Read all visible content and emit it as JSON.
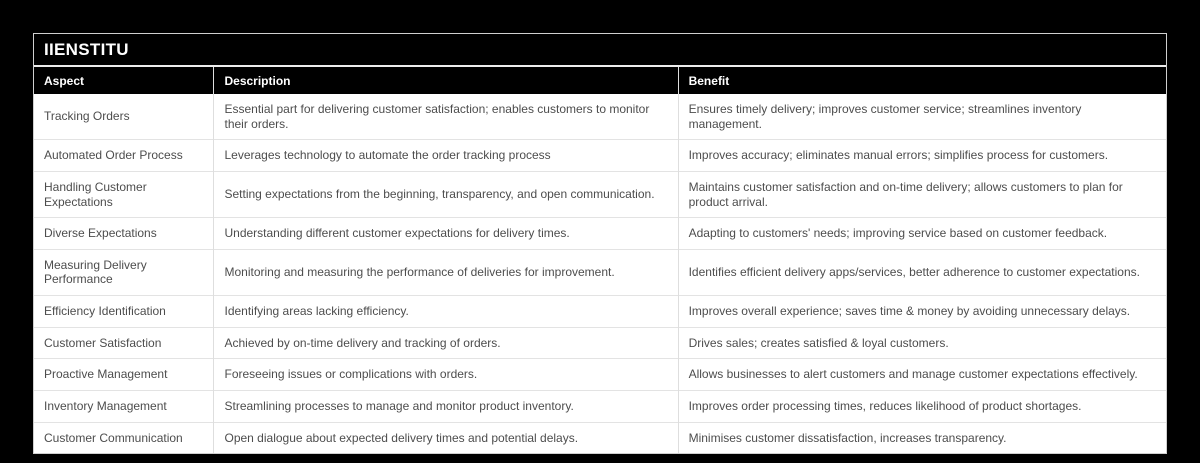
{
  "page": {
    "background_color": "#000000"
  },
  "card": {
    "title": "IIENSTITU",
    "colors": {
      "brand_bar_bg": "#000000",
      "brand_bar_text": "#ffffff",
      "header_row_bg": "#000000",
      "header_row_text": "#ffffff",
      "body_bg": "#ffffff",
      "body_text": "#4d4d4d",
      "row_divider": "#e3e3e3",
      "card_border": "#cfcfcf"
    }
  },
  "table": {
    "columns": [
      {
        "key": "aspect",
        "label": "Aspect"
      },
      {
        "key": "description",
        "label": "Description"
      },
      {
        "key": "benefit",
        "label": "Benefit"
      }
    ],
    "rows": [
      {
        "aspect": "Tracking Orders",
        "description": "Essential part for delivering customer satisfaction; enables customers to monitor their orders.",
        "benefit": "Ensures timely delivery; improves customer service; streamlines inventory management."
      },
      {
        "aspect": "Automated Order Process",
        "description": "Leverages technology to automate the order tracking process",
        "benefit": "Improves accuracy; eliminates manual errors; simplifies process for customers."
      },
      {
        "aspect": "Handling Customer Expectations",
        "description": "Setting expectations from the beginning, transparency, and open communication.",
        "benefit": "Maintains customer satisfaction and on-time delivery; allows customers to plan for product arrival."
      },
      {
        "aspect": "Diverse Expectations",
        "description": "Understanding different customer expectations for delivery times.",
        "benefit": "Adapting to customers' needs; improving service based on customer feedback."
      },
      {
        "aspect": "Measuring Delivery Performance",
        "description": "Monitoring and measuring the performance of deliveries for improvement.",
        "benefit": "Identifies efficient delivery apps/services, better adherence to customer expectations."
      },
      {
        "aspect": "Efficiency Identification",
        "description": "Identifying areas lacking efficiency.",
        "benefit": "Improves overall experience; saves time & money by avoiding unnecessary delays."
      },
      {
        "aspect": "Customer Satisfaction",
        "description": "Achieved by on-time delivery and tracking of orders.",
        "benefit": "Drives sales; creates satisfied & loyal customers."
      },
      {
        "aspect": "Proactive Management",
        "description": "Foreseeing issues or complications with orders.",
        "benefit": "Allows businesses to alert customers and manage customer expectations effectively."
      },
      {
        "aspect": "Inventory Management",
        "description": "Streamlining processes to manage and monitor product inventory.",
        "benefit": "Improves order processing times, reduces likelihood of product shortages."
      },
      {
        "aspect": "Customer Communication",
        "description": "Open dialogue about expected delivery times and potential delays.",
        "benefit": "Minimises customer dissatisfaction, increases transparency."
      }
    ]
  }
}
